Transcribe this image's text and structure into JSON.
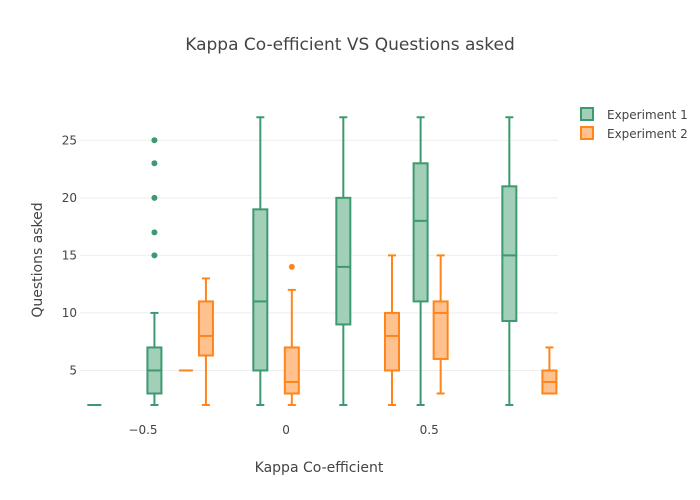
{
  "chart_data": {
    "type": "box",
    "title": "Kappa Co-efficient VS Questions asked",
    "xlabel": "Kappa Co-efficient",
    "ylabel": "Questions asked",
    "xlim": [
      -0.72,
      0.95
    ],
    "ylim": [
      2,
      28.5
    ],
    "x_ticks": [
      {
        "value": -0.5,
        "label": "−0.5"
      },
      {
        "value": 0,
        "label": "0"
      },
      {
        "value": 0.5,
        "label": "0.5"
      }
    ],
    "y_ticks": [
      5,
      10,
      15,
      20,
      25
    ],
    "grid": true,
    "legend_position": "top-right",
    "series": [
      {
        "name": "Experiment 1",
        "line_color": "#3d9970",
        "fill_color": "#a1cfb7",
        "boxes": [
          {
            "x": -0.67,
            "min": 2,
            "q1": 2,
            "median": 2,
            "q3": 2,
            "max": 2,
            "outliers": []
          },
          {
            "x": -0.46,
            "min": 2,
            "q1": 3,
            "median": 5,
            "q3": 7,
            "max": 10,
            "outliers": [
              15,
              17,
              20,
              23,
              25
            ]
          },
          {
            "x": -0.09,
            "min": 2,
            "q1": 5,
            "median": 11,
            "q3": 19,
            "max": 27,
            "outliers": []
          },
          {
            "x": 0.2,
            "min": 2,
            "q1": 9,
            "median": 14,
            "q3": 20,
            "max": 27,
            "outliers": []
          },
          {
            "x": 0.47,
            "min": 2,
            "q1": 11,
            "median": 18,
            "q3": 23,
            "max": 27,
            "outliers": []
          },
          {
            "x": 0.78,
            "min": 2,
            "q1": 9.3,
            "median": 15,
            "q3": 21,
            "max": 27,
            "outliers": []
          }
        ]
      },
      {
        "name": "Experiment 2",
        "line_color": "#ff851b",
        "fill_color": "#ffc18d",
        "boxes": [
          {
            "x": -0.35,
            "min": 5,
            "q1": 5,
            "median": 5,
            "q3": 5,
            "max": 5,
            "outliers": []
          },
          {
            "x": -0.28,
            "min": 2,
            "q1": 6.3,
            "median": 8,
            "q3": 11,
            "max": 13,
            "outliers": []
          },
          {
            "x": 0.02,
            "min": 2,
            "q1": 3,
            "median": 4,
            "q3": 7,
            "max": 12,
            "outliers": [
              14
            ]
          },
          {
            "x": 0.37,
            "min": 2,
            "q1": 5,
            "median": 8,
            "q3": 10,
            "max": 15,
            "outliers": []
          },
          {
            "x": 0.54,
            "min": 3,
            "q1": 6,
            "median": 10,
            "q3": 11,
            "max": 15,
            "outliers": []
          },
          {
            "x": 0.92,
            "min": 3,
            "q1": 3,
            "median": 4,
            "q3": 5,
            "max": 7,
            "outliers": []
          }
        ]
      }
    ]
  }
}
